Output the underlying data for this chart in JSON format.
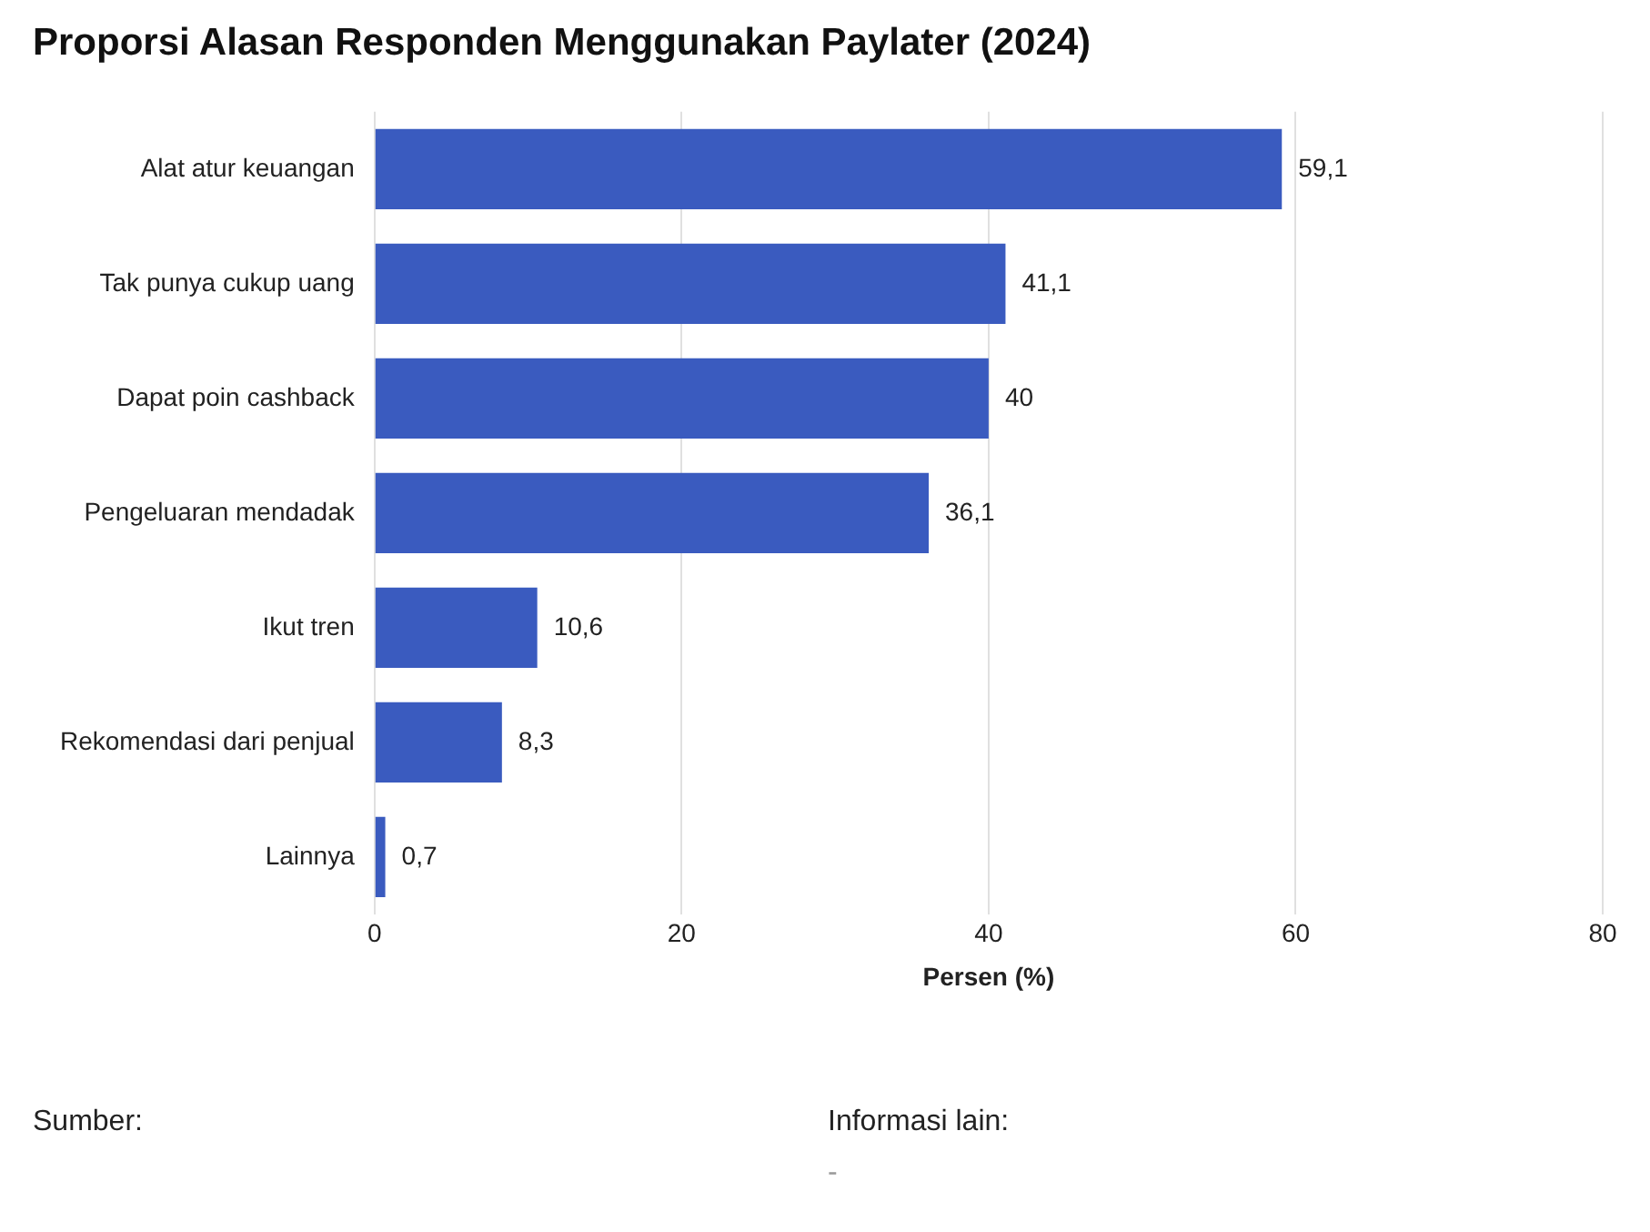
{
  "chart_data": {
    "type": "bar",
    "orientation": "horizontal",
    "title": "Proporsi Alasan Responden Menggunakan Paylater (2024)",
    "categories": [
      "Alat atur keuangan",
      "Tak punya cukup uang",
      "Dapat poin cashback",
      "Pengeluaran mendadak",
      "Ikut tren",
      "Rekomendasi dari penjual",
      "Lainnya"
    ],
    "values": [
      59.1,
      41.1,
      40,
      36.1,
      10.6,
      8.3,
      0.7
    ],
    "value_labels": [
      "59,1",
      "41,1",
      "40",
      "36,1",
      "10,6",
      "8,3",
      "0,7"
    ],
    "color": "#3a5bbf",
    "xlabel": "Persen (%)",
    "xlim": [
      0,
      80
    ],
    "xticks": [
      0,
      20,
      40,
      60,
      80
    ],
    "grid": "x",
    "annotations": [
      "Sumber:",
      "Informasi lain:",
      "-"
    ]
  }
}
